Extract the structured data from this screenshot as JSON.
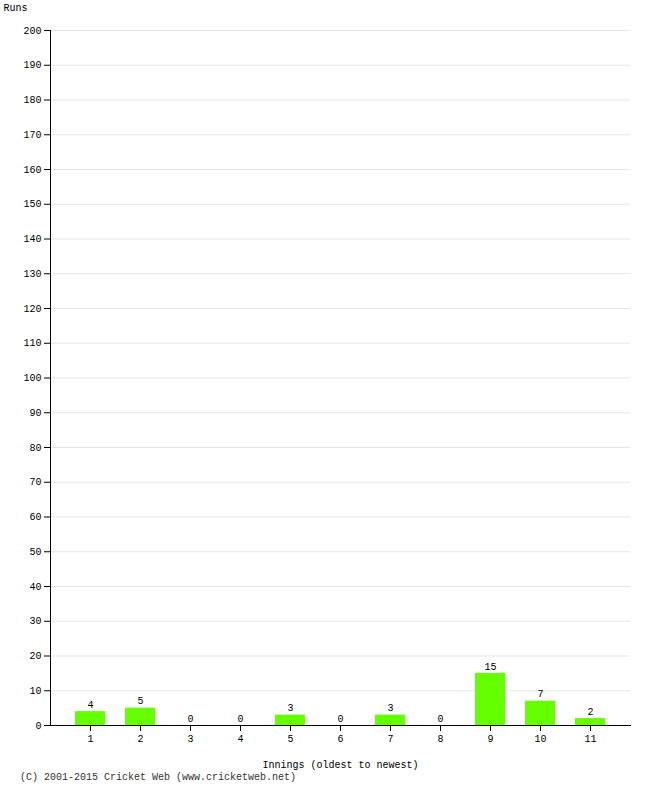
{
  "chart_data": {
    "type": "bar",
    "categories": [
      "1",
      "2",
      "3",
      "4",
      "5",
      "6",
      "7",
      "8",
      "9",
      "10",
      "11"
    ],
    "values": [
      4,
      5,
      0,
      0,
      3,
      0,
      3,
      0,
      15,
      7,
      2
    ],
    "color": "#66ff00",
    "xlabel": "Innings (oldest to newest)",
    "ylabel": "Runs",
    "ylim": [
      0,
      200
    ],
    "yticks": [
      0,
      10,
      20,
      30,
      40,
      50,
      60,
      70,
      80,
      90,
      100,
      110,
      120,
      130,
      140,
      150,
      160,
      170,
      180,
      190,
      200
    ],
    "grid": true,
    "data_labels": true,
    "annotations": [
      "(C) 2001-2015 Cricket Web (www.cricketweb.net)"
    ]
  }
}
